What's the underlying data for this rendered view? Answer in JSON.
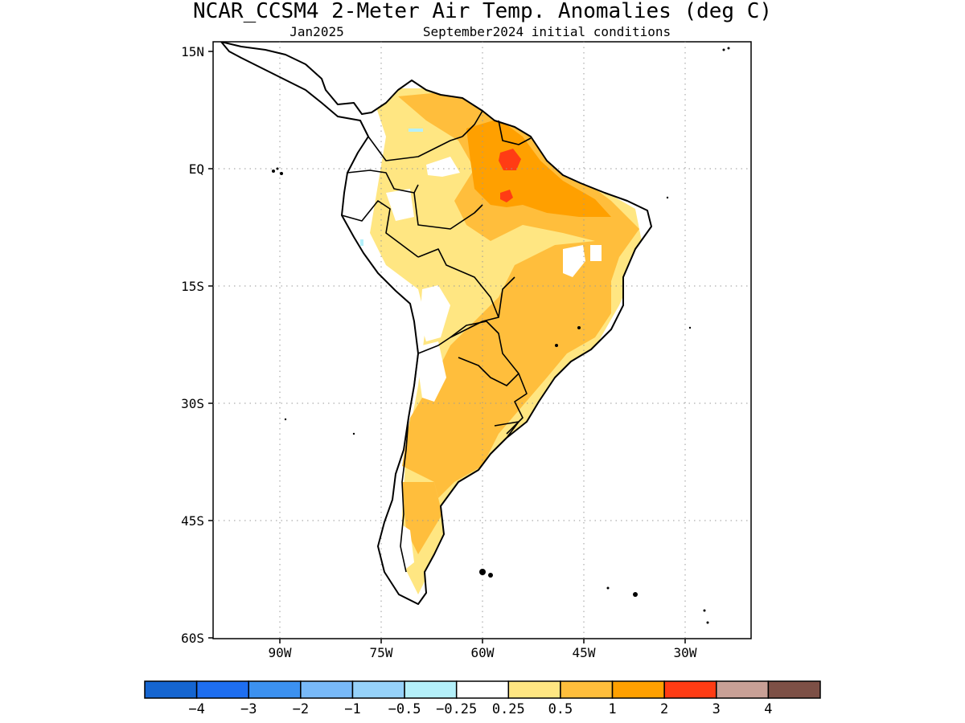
{
  "header": {
    "title": "NCAR_CCSM4 2-Meter Air Temp. Anomalies (deg C)",
    "target_month": "Jan2025",
    "init_label": "September2024 initial conditions"
  },
  "map": {
    "lat_labels": [
      "15N",
      "EQ",
      "15S",
      "30S",
      "45S",
      "60S"
    ],
    "lon_labels": [
      "90W",
      "75W",
      "60W",
      "45W",
      "30W"
    ]
  },
  "legend": {
    "colors": [
      "#1565d0",
      "#1e6ef0",
      "#3c91f0",
      "#78b9f8",
      "#96d2fa",
      "#b4f0fa",
      "#ffffff",
      "#ffe682",
      "#ffbe3c",
      "#ffa000",
      "#ff3c14",
      "#c8a096",
      "#7d5046"
    ],
    "labels": [
      "−4",
      "−3",
      "−2",
      "−1",
      "−0.5",
      "−0.25",
      "0.25",
      "0.5",
      "1",
      "2",
      "3",
      "4"
    ]
  }
}
